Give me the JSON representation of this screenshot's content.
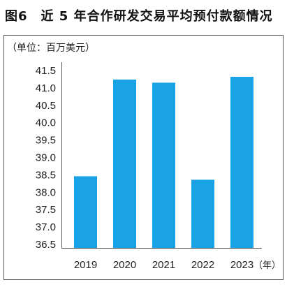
{
  "colors": {
    "bar": "#19a3e6",
    "axis": "#555555",
    "frame": "#555555"
  },
  "chart_data": {
    "type": "bar",
    "title": "图6　近 5 年合作研发交易平均预付款额情况",
    "ylabel": "（单位：百万美元）",
    "xlabel": "（年）",
    "categories": [
      "2019",
      "2020",
      "2021",
      "2022",
      "2023"
    ],
    "values": [
      38.46,
      41.24,
      41.15,
      38.36,
      41.32
    ],
    "ylim": [
      36.5,
      41.5
    ],
    "yticks": [
      36.5,
      37.0,
      37.5,
      38.0,
      38.5,
      39.0,
      39.5,
      40.0,
      40.5,
      41.0,
      41.5
    ],
    "grid": false,
    "legend": "none"
  }
}
